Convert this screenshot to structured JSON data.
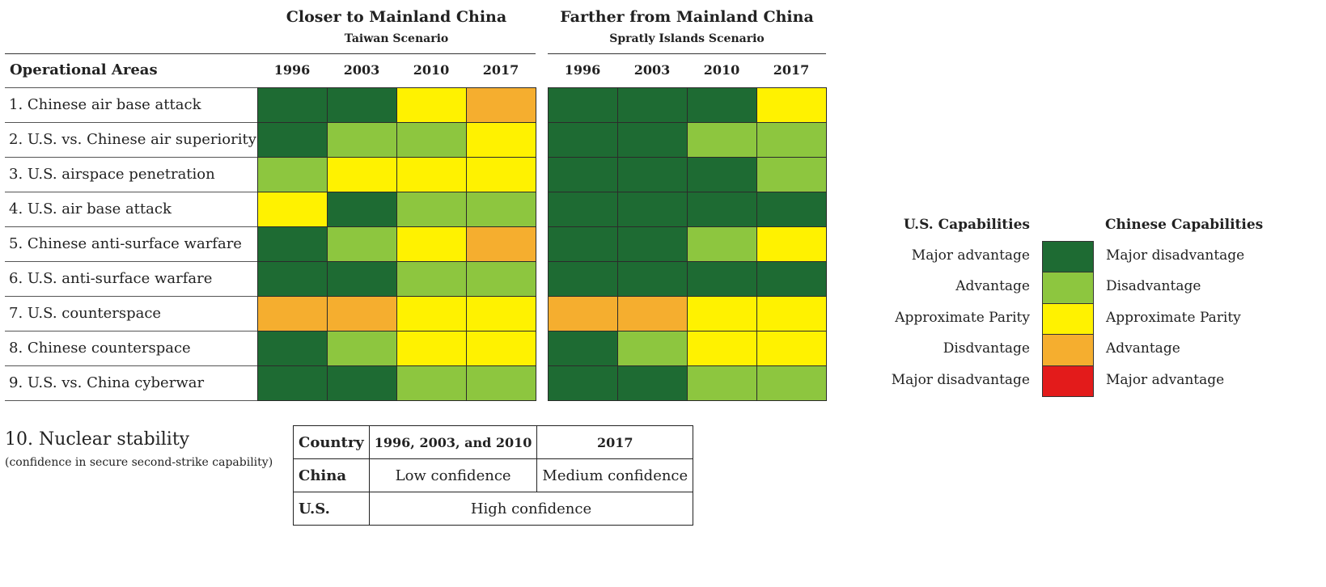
{
  "headers": {
    "closer_title": "Closer to Mainland China",
    "closer_sub": "Taiwan Scenario",
    "farther_title": "Farther from Mainland China",
    "farther_sub": "Spratly Islands Scenario",
    "ops_label": "Operational Areas"
  },
  "colors": {
    "major_us_advantage": "#1e6b33",
    "us_advantage": "#8dc63f",
    "parity": "#fff200",
    "us_disadvantage": "#f5ae2f",
    "major_us_disadvantage": "#e31b1b"
  },
  "chart_data": {
    "type": "heatmap",
    "years": [
      "1996",
      "2003",
      "2010",
      "2017"
    ],
    "scenarios": [
      "Closer to Mainland China",
      "Farther from Mainland China"
    ],
    "scale": [
      "major_us_advantage",
      "us_advantage",
      "parity",
      "us_disadvantage",
      "major_us_disadvantage"
    ],
    "rows": [
      {
        "label": "1. Chinese air base attack",
        "taiwan": [
          "major_us_advantage",
          "major_us_advantage",
          "parity",
          "us_disadvantage"
        ],
        "spratly": [
          "major_us_advantage",
          "major_us_advantage",
          "major_us_advantage",
          "parity"
        ]
      },
      {
        "label": "2. U.S. vs. Chinese air superiority",
        "taiwan": [
          "major_us_advantage",
          "us_advantage",
          "us_advantage",
          "parity"
        ],
        "spratly": [
          "major_us_advantage",
          "major_us_advantage",
          "us_advantage",
          "us_advantage"
        ]
      },
      {
        "label": "3. U.S. airspace penetration",
        "taiwan": [
          "us_advantage",
          "parity",
          "parity",
          "parity"
        ],
        "spratly": [
          "major_us_advantage",
          "major_us_advantage",
          "major_us_advantage",
          "us_advantage"
        ]
      },
      {
        "label": "4. U.S. air base attack",
        "taiwan": [
          "parity",
          "major_us_advantage",
          "us_advantage",
          "us_advantage"
        ],
        "spratly": [
          "major_us_advantage",
          "major_us_advantage",
          "major_us_advantage",
          "major_us_advantage"
        ]
      },
      {
        "label": "5. Chinese anti-surface warfare",
        "taiwan": [
          "major_us_advantage",
          "us_advantage",
          "parity",
          "us_disadvantage"
        ],
        "spratly": [
          "major_us_advantage",
          "major_us_advantage",
          "us_advantage",
          "parity"
        ]
      },
      {
        "label": "6. U.S. anti-surface warfare",
        "taiwan": [
          "major_us_advantage",
          "major_us_advantage",
          "us_advantage",
          "us_advantage"
        ],
        "spratly": [
          "major_us_advantage",
          "major_us_advantage",
          "major_us_advantage",
          "major_us_advantage"
        ]
      },
      {
        "label": "7. U.S. counterspace",
        "taiwan": [
          "us_disadvantage",
          "us_disadvantage",
          "parity",
          "parity"
        ],
        "spratly": [
          "us_disadvantage",
          "us_disadvantage",
          "parity",
          "parity"
        ]
      },
      {
        "label": "8. Chinese counterspace",
        "taiwan": [
          "major_us_advantage",
          "us_advantage",
          "parity",
          "parity"
        ],
        "spratly": [
          "major_us_advantage",
          "us_advantage",
          "parity",
          "parity"
        ]
      },
      {
        "label": "9. U.S. vs. China cyberwar",
        "taiwan": [
          "major_us_advantage",
          "major_us_advantage",
          "us_advantage",
          "us_advantage"
        ],
        "spratly": [
          "major_us_advantage",
          "major_us_advantage",
          "us_advantage",
          "us_advantage"
        ]
      }
    ]
  },
  "legend": {
    "us_head": "U.S. Capabilities",
    "cn_head": "Chinese Capabilities",
    "items": [
      {
        "us": "Major advantage",
        "cn": "Major disadvantage",
        "color": "#1e6b33"
      },
      {
        "us": "Advantage",
        "cn": "Disadvantage",
        "color": "#8dc63f"
      },
      {
        "us": "Approximate Parity",
        "cn": "Approximate Parity",
        "color": "#fff200"
      },
      {
        "us": "Disdvantage",
        "cn": "Advantage",
        "color": "#f5ae2f"
      },
      {
        "us": "Major disadvantage",
        "cn": "Major advantage",
        "color": "#e31b1b"
      }
    ]
  },
  "nuclear": {
    "title": "10. Nuclear stability",
    "subtitle": "(confidence in secure second-strike capability)",
    "col_country": "Country",
    "col_early": "1996, 2003, and 2010",
    "col_2017": "2017",
    "china_label": "China",
    "china_early": "Low confidence",
    "china_2017": "Medium confidence",
    "us_label": "U.S.",
    "us_all": "High confidence"
  }
}
